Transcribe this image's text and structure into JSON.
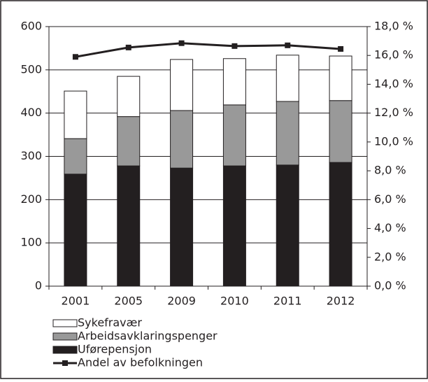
{
  "chart_data": {
    "type": "bar",
    "categories": [
      "2001",
      "2005",
      "2009",
      "2010",
      "2011",
      "2012"
    ],
    "stacked": true,
    "series": [
      {
        "name": "Sykefravær",
        "color": "#ffffff",
        "values": [
          110,
          93,
          118,
          107,
          107,
          103
        ]
      },
      {
        "name": "Arbeidsavklaringspenger",
        "color": "#999999",
        "values": [
          82,
          114,
          133,
          141,
          147,
          143
        ]
      },
      {
        "name": "Uførepensjon",
        "color": "#231f20",
        "values": [
          259,
          278,
          273,
          278,
          280,
          286
        ]
      },
      {
        "name": "Andel av befolkningen",
        "type": "line",
        "axis": "y2",
        "color": "#231f20",
        "values": [
          15.9,
          16.55,
          16.85,
          16.65,
          16.7,
          16.45
        ]
      }
    ],
    "ylim": [
      0,
      600
    ],
    "yticks": [
      0,
      100,
      200,
      300,
      400,
      500,
      600
    ],
    "y2lim": [
      0,
      18
    ],
    "y2ticks": [
      {
        "value": 0,
        "label": "0,0 %"
      },
      {
        "value": 2,
        "label": "2,0 %"
      },
      {
        "value": 4,
        "label": "4,0 %"
      },
      {
        "value": 6,
        "label": "6,0 %"
      },
      {
        "value": 8,
        "label": "8,0 %"
      },
      {
        "value": 10,
        "label": "10,0 %"
      },
      {
        "value": 12,
        "label": "12,0 %"
      },
      {
        "value": 14,
        "label": "14,0 %"
      },
      {
        "value": 16,
        "label": "16,0 %"
      },
      {
        "value": 18,
        "label": "18,0 %"
      }
    ],
    "grid": true,
    "legend": "bottom-left"
  }
}
